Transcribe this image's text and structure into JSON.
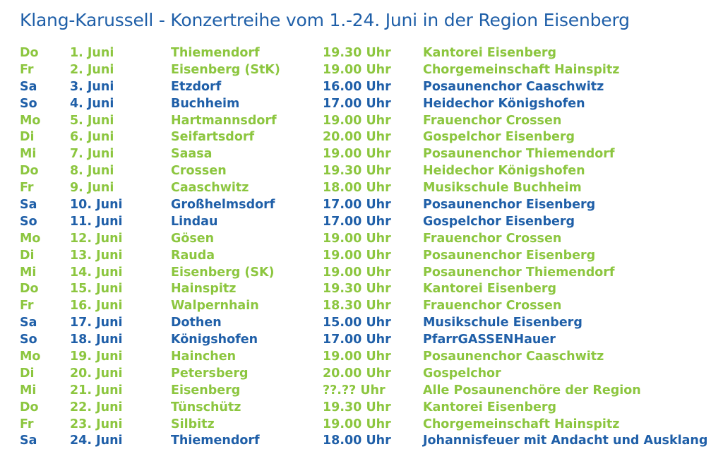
{
  "title": "Klang-Karussell - Konzertreihe vom 1.-24. Juni in der Region Eisenberg",
  "colors": {
    "green": "#8cc63f",
    "blue": "#1f5fa8"
  },
  "rows": [
    {
      "day": "Do",
      "date": "1. Juni",
      "place": "Thiemendorf",
      "time": "19.30 Uhr",
      "group": "Kantorei Eisenberg",
      "color": "green"
    },
    {
      "day": "Fr",
      "date": "2. Juni",
      "place": "Eisenberg (StK)",
      "time": "19.00 Uhr",
      "group": "Chorgemeinschaft Hainspitz",
      "color": "green"
    },
    {
      "day": "Sa",
      "date": "3. Juni",
      "place": "Etzdorf",
      "time": "16.00 Uhr",
      "group": "Posaunenchor Caaschwitz",
      "color": "blue"
    },
    {
      "day": "So",
      "date": "4. Juni",
      "place": "Buchheim",
      "time": "17.00 Uhr",
      "group": "Heidechor Königshofen",
      "color": "blue"
    },
    {
      "day": "Mo",
      "date": "5. Juni",
      "place": "Hartmannsdorf",
      "time": "19.00 Uhr",
      "group": "Frauenchor Crossen",
      "color": "green"
    },
    {
      "day": "Di",
      "date": "6. Juni",
      "place": "Seifartsdorf",
      "time": "20.00 Uhr",
      "group": "Gospelchor Eisenberg",
      "color": "green"
    },
    {
      "day": "Mi",
      "date": "7. Juni",
      "place": "Saasa",
      "time": "19.00 Uhr",
      "group": "Posaunenchor Thiemendorf",
      "color": "green"
    },
    {
      "day": "Do",
      "date": "8. Juni",
      "place": "Crossen",
      "time": "19.30 Uhr",
      "group": "Heidechor Königshofen",
      "color": "green"
    },
    {
      "day": "Fr",
      "date": "9. Juni",
      "place": "Caaschwitz",
      "time": "18.00 Uhr",
      "group": "Musikschule Buchheim",
      "color": "green"
    },
    {
      "day": "Sa",
      "date": "10. Juni",
      "place": "Großhelmsdorf",
      "time": "17.00 Uhr",
      "group": "Posaunenchor Eisenberg",
      "color": "blue"
    },
    {
      "day": "So",
      "date": "11. Juni",
      "place": "Lindau",
      "time": "17.00 Uhr",
      "group": "Gospelchor Eisenberg",
      "color": "blue"
    },
    {
      "day": "Mo",
      "date": "12. Juni",
      "place": "Gösen",
      "time": "19.00 Uhr",
      "group": "Frauenchor Crossen",
      "color": "green"
    },
    {
      "day": "Di",
      "date": "13. Juni",
      "place": "Rauda",
      "time": "19.00 Uhr",
      "group": "Posaunenchor Eisenberg",
      "color": "green"
    },
    {
      "day": "Mi",
      "date": "14. Juni",
      "place": "Eisenberg (SK)",
      "time": "19.00 Uhr",
      "group": "Posaunenchor Thiemendorf",
      "color": "green"
    },
    {
      "day": "Do",
      "date": "15. Juni",
      "place": "Hainspitz",
      "time": "19.30 Uhr",
      "group": "Kantorei Eisenberg",
      "color": "green"
    },
    {
      "day": "Fr",
      "date": "16. Juni",
      "place": "Walpernhain",
      "time": "18.30 Uhr",
      "group": "Frauenchor Crossen",
      "color": "green"
    },
    {
      "day": "Sa",
      "date": "17. Juni",
      "place": "Dothen",
      "time": "15.00 Uhr",
      "group": "Musikschule Eisenberg",
      "color": "blue"
    },
    {
      "day": "So",
      "date": "18. Juni",
      "place": "Königshofen",
      "time": "17.00 Uhr",
      "group": "PfarrGASSENHauer",
      "color": "blue"
    },
    {
      "day": "Mo",
      "date": "19. Juni",
      "place": "Hainchen",
      "time": "19.00 Uhr",
      "group": "Posaunenchor Caaschwitz",
      "color": "green"
    },
    {
      "day": "Di",
      "date": "20. Juni",
      "place": "Petersberg",
      "time": "20.00 Uhr",
      "group": "Gospelchor",
      "color": "green"
    },
    {
      "day": "Mi",
      "date": "21. Juni",
      "place": "Eisenberg",
      "time": "??.?? Uhr",
      "group": "Alle Posaunenchöre der Region",
      "color": "green"
    },
    {
      "day": "Do",
      "date": "22. Juni",
      "place": "Tünschütz",
      "time": "19.30 Uhr",
      "group": "Kantorei Eisenberg",
      "color": "green"
    },
    {
      "day": "Fr",
      "date": "23. Juni",
      "place": "Silbitz",
      "time": "19.00 Uhr",
      "group": "Chorgemeinschaft Hainspitz",
      "color": "green"
    },
    {
      "day": "Sa",
      "date": "24. Juni",
      "place": "Thiemendorf",
      "time": "18.00 Uhr",
      "group": "Johannisfeuer mit Andacht und Ausklang",
      "color": "blue"
    }
  ]
}
